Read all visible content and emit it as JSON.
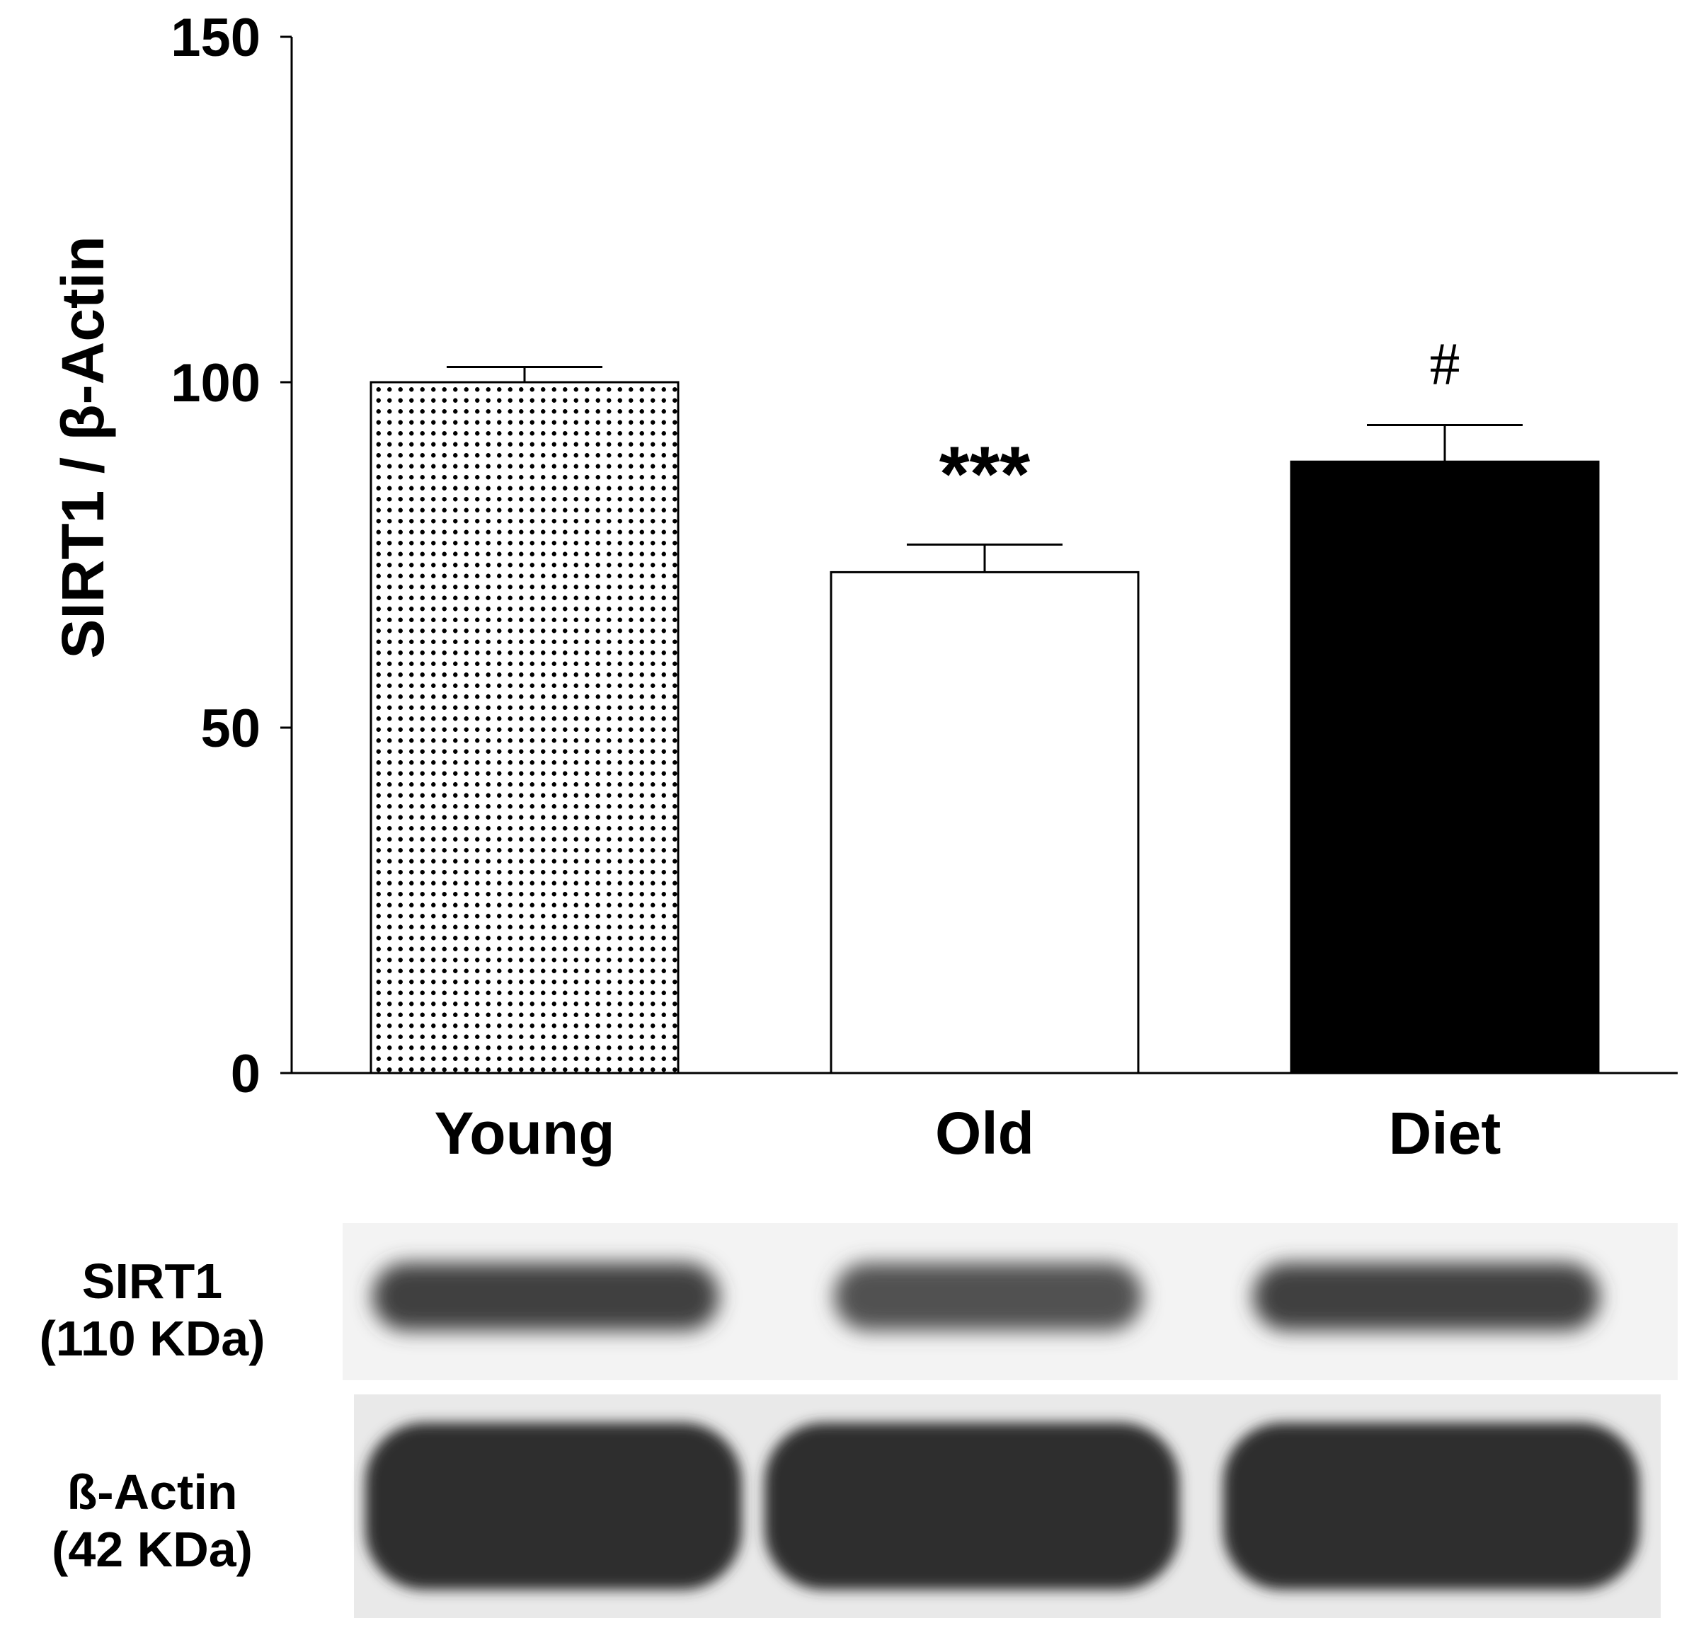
{
  "chart_data": {
    "type": "bar",
    "ylabel": "SIRT1 / β-Actin",
    "ylim": [
      0,
      150
    ],
    "yticks": [
      "0",
      "50",
      "100",
      "150"
    ],
    "categories": [
      "Young",
      "Old",
      "Diet"
    ],
    "values": [
      100,
      72.5,
      88.5
    ],
    "errors": [
      2.2,
      4.0,
      5.3
    ],
    "annotations": [
      "",
      "***",
      "#"
    ],
    "fills": [
      "dotted",
      "#ffffff",
      "#000000"
    ],
    "grid": false,
    "legend": "none"
  },
  "blot": {
    "rows": [
      {
        "line1": "SIRT1",
        "line2": "(110 KDa)"
      },
      {
        "line1": "ß-Actin",
        "line2": "(42 KDa)"
      }
    ]
  }
}
